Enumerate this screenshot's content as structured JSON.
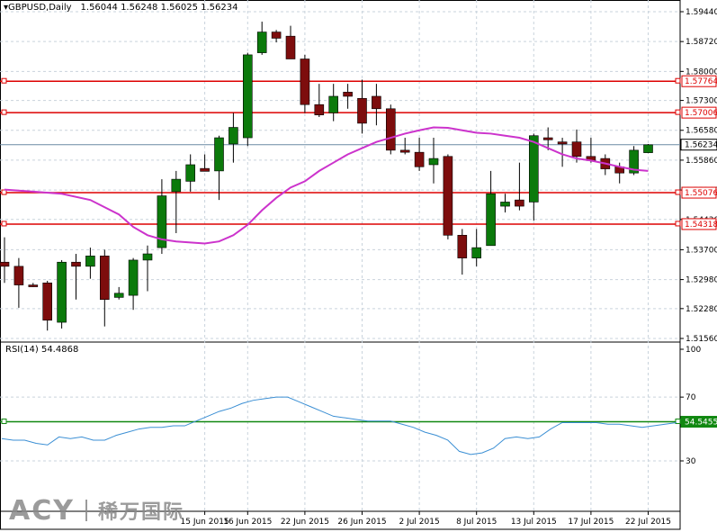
{
  "header": {
    "symbol": "GBPUSD,Daily",
    "ohlc": "1.56044 1.56248 1.56025 1.56234"
  },
  "rsi": {
    "label": "RSI(14) 54.4868",
    "current_level_label": "54.5455"
  },
  "watermark": {
    "brand": "ACY",
    "cn": "稀万国际"
  },
  "colors": {
    "bull": "#0b7a0b",
    "bear": "#7d0d0d",
    "ma": "#cc33cc",
    "level": "#dd0000",
    "rsi_line": "#3b8fd4",
    "rsi_level": "#118811",
    "grid": "#c9d3dc",
    "price_line": "#6a8aa3"
  },
  "chart_data": [
    {
      "type": "candlestick",
      "title": "GBPUSD,Daily",
      "y_ticks": [
        1.5944,
        1.5872,
        1.58,
        1.573,
        1.5658,
        1.5586,
        1.5514,
        1.5443,
        1.537,
        1.5298,
        1.5228,
        1.5156
      ],
      "y_tick_labels": [
        "1.59440",
        "1.58720",
        "1.58000",
        "1.57300",
        "1.56580",
        "1.55860",
        "1.55140",
        "1.54430",
        "1.53700",
        "1.52980",
        "1.52280",
        "1.51560"
      ],
      "x_labels": [
        "15 Jun 2015",
        "16 Jun 2015",
        "22 Jun 2015",
        "26 Jun 2015",
        "2 Jul 2015",
        "8 Jul 2015",
        "13 Jul 2015",
        "17 Jul 2015",
        "22 Jul 2015"
      ],
      "x_label_candle_index": [
        14,
        17,
        21,
        25,
        29,
        33,
        37,
        41,
        45
      ],
      "levels": [
        {
          "value": 1.57764,
          "label": "1.57764"
        },
        {
          "value": 1.57006,
          "label": "1.57006"
        },
        {
          "value": 1.55076,
          "label": "1.55076"
        },
        {
          "value": 1.54318,
          "label": "1.54318"
        }
      ],
      "current_price": {
        "value": 1.56234,
        "label": "1.56234"
      },
      "candles": [
        {
          "o": 1.534,
          "h": 1.54,
          "l": 1.529,
          "c": 1.533
        },
        {
          "o": 1.533,
          "h": 1.535,
          "l": 1.523,
          "c": 1.5285
        },
        {
          "o": 1.5285,
          "h": 1.529,
          "l": 1.528,
          "c": 1.5283
        },
        {
          "o": 1.529,
          "h": 1.5295,
          "l": 1.5175,
          "c": 1.52
        },
        {
          "o": 1.5195,
          "h": 1.5345,
          "l": 1.518,
          "c": 1.534
        },
        {
          "o": 1.534,
          "h": 1.536,
          "l": 1.525,
          "c": 1.533
        },
        {
          "o": 1.533,
          "h": 1.5375,
          "l": 1.53,
          "c": 1.5355
        },
        {
          "o": 1.5355,
          "h": 1.537,
          "l": 1.5185,
          "c": 1.525
        },
        {
          "o": 1.5255,
          "h": 1.528,
          "l": 1.525,
          "c": 1.5265
        },
        {
          "o": 1.526,
          "h": 1.535,
          "l": 1.5225,
          "c": 1.5345
        },
        {
          "o": 1.5345,
          "h": 1.538,
          "l": 1.527,
          "c": 1.536
        },
        {
          "o": 1.5375,
          "h": 1.554,
          "l": 1.536,
          "c": 1.55
        },
        {
          "o": 1.551,
          "h": 1.556,
          "l": 1.541,
          "c": 1.554
        },
        {
          "o": 1.5535,
          "h": 1.56,
          "l": 1.551,
          "c": 1.5575
        },
        {
          "o": 1.5566,
          "h": 1.56,
          "l": 1.556,
          "c": 1.5559
        },
        {
          "o": 1.556,
          "h": 1.5645,
          "l": 1.549,
          "c": 1.564
        },
        {
          "o": 1.5625,
          "h": 1.57,
          "l": 1.558,
          "c": 1.5665
        },
        {
          "o": 1.564,
          "h": 1.5845,
          "l": 1.562,
          "c": 1.584
        },
        {
          "o": 1.5845,
          "h": 1.592,
          "l": 1.584,
          "c": 1.5895
        },
        {
          "o": 1.5895,
          "h": 1.59,
          "l": 1.587,
          "c": 1.588
        },
        {
          "o": 1.5885,
          "h": 1.591,
          "l": 1.583,
          "c": 1.583
        },
        {
          "o": 1.583,
          "h": 1.584,
          "l": 1.57,
          "c": 1.572
        },
        {
          "o": 1.572,
          "h": 1.577,
          "l": 1.569,
          "c": 1.5695
        },
        {
          "o": 1.57,
          "h": 1.577,
          "l": 1.568,
          "c": 1.574
        },
        {
          "o": 1.575,
          "h": 1.577,
          "l": 1.571,
          "c": 1.574
        },
        {
          "o": 1.5735,
          "h": 1.578,
          "l": 1.565,
          "c": 1.5675
        },
        {
          "o": 1.574,
          "h": 1.577,
          "l": 1.567,
          "c": 1.571
        },
        {
          "o": 1.571,
          "h": 1.572,
          "l": 1.56,
          "c": 1.561
        },
        {
          "o": 1.561,
          "h": 1.564,
          "l": 1.56,
          "c": 1.5605
        },
        {
          "o": 1.5605,
          "h": 1.564,
          "l": 1.556,
          "c": 1.557
        },
        {
          "o": 1.5575,
          "h": 1.564,
          "l": 1.553,
          "c": 1.559
        },
        {
          "o": 1.5595,
          "h": 1.56,
          "l": 1.5395,
          "c": 1.5405
        },
        {
          "o": 1.5405,
          "h": 1.542,
          "l": 1.531,
          "c": 1.535
        },
        {
          "o": 1.535,
          "h": 1.542,
          "l": 1.533,
          "c": 1.5375
        },
        {
          "o": 1.538,
          "h": 1.556,
          "l": 1.538,
          "c": 1.5505
        },
        {
          "o": 1.5475,
          "h": 1.5505,
          "l": 1.546,
          "c": 1.5485
        },
        {
          "o": 1.549,
          "h": 1.558,
          "l": 1.5465,
          "c": 1.5475
        },
        {
          "o": 1.5485,
          "h": 1.565,
          "l": 1.544,
          "c": 1.5645
        },
        {
          "o": 1.564,
          "h": 1.5665,
          "l": 1.561,
          "c": 1.5635
        },
        {
          "o": 1.563,
          "h": 1.564,
          "l": 1.557,
          "c": 1.5625
        },
        {
          "o": 1.563,
          "h": 1.566,
          "l": 1.558,
          "c": 1.5595
        },
        {
          "o": 1.5595,
          "h": 1.564,
          "l": 1.558,
          "c": 1.5585
        },
        {
          "o": 1.559,
          "h": 1.56,
          "l": 1.555,
          "c": 1.5565
        },
        {
          "o": 1.557,
          "h": 1.558,
          "l": 1.553,
          "c": 1.5555
        },
        {
          "o": 1.5555,
          "h": 1.562,
          "l": 1.555,
          "c": 1.561
        },
        {
          "o": 1.5604,
          "h": 1.5625,
          "l": 1.5603,
          "c": 1.5623
        }
      ],
      "moving_average": [
        {
          "i": 0,
          "v": 1.5515
        },
        {
          "i": 2,
          "v": 1.551
        },
        {
          "i": 4,
          "v": 1.5505
        },
        {
          "i": 6,
          "v": 1.549
        },
        {
          "i": 8,
          "v": 1.5455
        },
        {
          "i": 9,
          "v": 1.5425
        },
        {
          "i": 10,
          "v": 1.5405
        },
        {
          "i": 11,
          "v": 1.5395
        },
        {
          "i": 12,
          "v": 1.539
        },
        {
          "i": 14,
          "v": 1.5385
        },
        {
          "i": 15,
          "v": 1.539
        },
        {
          "i": 16,
          "v": 1.5405
        },
        {
          "i": 17,
          "v": 1.543
        },
        {
          "i": 18,
          "v": 1.5465
        },
        {
          "i": 19,
          "v": 1.5495
        },
        {
          "i": 20,
          "v": 1.552
        },
        {
          "i": 21,
          "v": 1.5535
        },
        {
          "i": 22,
          "v": 1.556
        },
        {
          "i": 23,
          "v": 1.558
        },
        {
          "i": 24,
          "v": 1.56
        },
        {
          "i": 25,
          "v": 1.5615
        },
        {
          "i": 26,
          "v": 1.563
        },
        {
          "i": 27,
          "v": 1.564
        },
        {
          "i": 28,
          "v": 1.565
        },
        {
          "i": 29,
          "v": 1.5658
        },
        {
          "i": 30,
          "v": 1.5665
        },
        {
          "i": 31,
          "v": 1.5664
        },
        {
          "i": 32,
          "v": 1.5658
        },
        {
          "i": 33,
          "v": 1.5652
        },
        {
          "i": 34,
          "v": 1.565
        },
        {
          "i": 35,
          "v": 1.5645
        },
        {
          "i": 36,
          "v": 1.564
        },
        {
          "i": 37,
          "v": 1.563
        },
        {
          "i": 38,
          "v": 1.5615
        },
        {
          "i": 39,
          "v": 1.56
        },
        {
          "i": 40,
          "v": 1.559
        },
        {
          "i": 41,
          "v": 1.5585
        },
        {
          "i": 42,
          "v": 1.5578
        },
        {
          "i": 43,
          "v": 1.557
        },
        {
          "i": 44,
          "v": 1.5563
        },
        {
          "i": 45,
          "v": 1.556
        }
      ]
    },
    {
      "type": "line",
      "title": "RSI(14) 54.4868",
      "y_ticks": [
        100,
        70,
        30
      ],
      "ylim": [
        0,
        100
      ],
      "level": 54.5455,
      "values": [
        44,
        43,
        43,
        41,
        40,
        45,
        44,
        45,
        43,
        43,
        46,
        48,
        50,
        51,
        51,
        52,
        52,
        55,
        58,
        61,
        63,
        66,
        68,
        69,
        70,
        70,
        67,
        64,
        61,
        58,
        57,
        56,
        55,
        55,
        55,
        53,
        51,
        48,
        46,
        43,
        36,
        34,
        35,
        38,
        44,
        45,
        44,
        45,
        50,
        54,
        54,
        54,
        54,
        53,
        53,
        52,
        51,
        52,
        53,
        54
      ]
    }
  ]
}
